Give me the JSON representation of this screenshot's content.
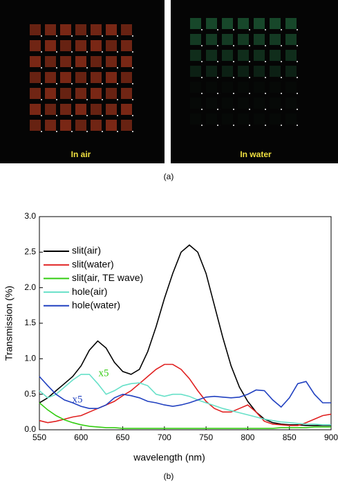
{
  "panel_a": {
    "images": [
      {
        "label": "In air"
      },
      {
        "label": "In water"
      }
    ],
    "caption": "(a)"
  },
  "chart_data": {
    "type": "line",
    "caption": "(b)",
    "x_label": "wavelength (nm)",
    "y_label": "Transmission (%)",
    "x": [
      550,
      560,
      570,
      580,
      590,
      600,
      610,
      620,
      630,
      640,
      650,
      660,
      670,
      680,
      690,
      700,
      710,
      720,
      730,
      740,
      750,
      760,
      770,
      780,
      790,
      800,
      810,
      820,
      830,
      840,
      850,
      860,
      870,
      880,
      890,
      900
    ],
    "series": [
      {
        "name": "slit(air)",
        "color": "#000000",
        "values": [
          0.38,
          0.45,
          0.55,
          0.65,
          0.75,
          0.9,
          1.12,
          1.25,
          1.15,
          0.95,
          0.82,
          0.78,
          0.85,
          1.1,
          1.45,
          1.85,
          2.2,
          2.5,
          2.6,
          2.5,
          2.2,
          1.75,
          1.3,
          0.9,
          0.6,
          0.4,
          0.25,
          0.15,
          0.1,
          0.08,
          0.07,
          0.07,
          0.06,
          0.06,
          0.06,
          0.06
        ]
      },
      {
        "name": "slit(water)",
        "color": "#e02020",
        "values": [
          0.13,
          0.1,
          0.12,
          0.15,
          0.18,
          0.2,
          0.25,
          0.3,
          0.35,
          0.4,
          0.48,
          0.55,
          0.65,
          0.75,
          0.85,
          0.92,
          0.92,
          0.85,
          0.72,
          0.55,
          0.4,
          0.3,
          0.25,
          0.25,
          0.3,
          0.35,
          0.25,
          0.12,
          0.08,
          0.07,
          0.06,
          0.06,
          0.1,
          0.15,
          0.2,
          0.22
        ]
      },
      {
        "name": "slit(air, TE wave)",
        "color": "#33cc11",
        "values": [
          0.38,
          0.28,
          0.2,
          0.14,
          0.1,
          0.07,
          0.05,
          0.04,
          0.03,
          0.03,
          0.02,
          0.02,
          0.02,
          0.02,
          0.02,
          0.02,
          0.02,
          0.02,
          0.02,
          0.02,
          0.02,
          0.02,
          0.02,
          0.02,
          0.02,
          0.02,
          0.02,
          0.02,
          0.02,
          0.03,
          0.03,
          0.03,
          0.03,
          0.04,
          0.04,
          0.04
        ]
      },
      {
        "name": "hole(air)",
        "color": "#66e0c8",
        "values": [
          0.55,
          0.45,
          0.5,
          0.6,
          0.7,
          0.78,
          0.78,
          0.65,
          0.5,
          0.55,
          0.62,
          0.65,
          0.66,
          0.62,
          0.5,
          0.47,
          0.5,
          0.5,
          0.47,
          0.42,
          0.38,
          0.34,
          0.3,
          0.27,
          0.24,
          0.21,
          0.18,
          0.15,
          0.13,
          0.11,
          0.1,
          0.09,
          0.08,
          0.08,
          0.07,
          0.07
        ]
      },
      {
        "name": "hole(water)",
        "color": "#2040c0",
        "values": [
          0.75,
          0.62,
          0.5,
          0.42,
          0.38,
          0.33,
          0.3,
          0.3,
          0.35,
          0.45,
          0.5,
          0.48,
          0.45,
          0.4,
          0.38,
          0.35,
          0.33,
          0.35,
          0.38,
          0.42,
          0.46,
          0.47,
          0.46,
          0.45,
          0.46,
          0.5,
          0.56,
          0.55,
          0.42,
          0.32,
          0.45,
          0.65,
          0.68,
          0.5,
          0.38,
          0.38
        ]
      }
    ],
    "annotations": [
      {
        "text": "x5",
        "color": "#33cc11"
      },
      {
        "text": "x5",
        "color": "#2040c0"
      }
    ],
    "xlim": [
      550,
      900
    ],
    "xticks": [
      550,
      600,
      650,
      700,
      750,
      800,
      850,
      900
    ],
    "ylim": [
      0,
      3
    ],
    "yticks": [
      {
        "value": 0,
        "label": "0.0"
      },
      0.5,
      {
        "value": 1,
        "label": "1.0"
      },
      1.5,
      {
        "value": 2,
        "label": "2.0"
      },
      2.5,
      {
        "value": 3,
        "label": "3.0"
      }
    ]
  }
}
